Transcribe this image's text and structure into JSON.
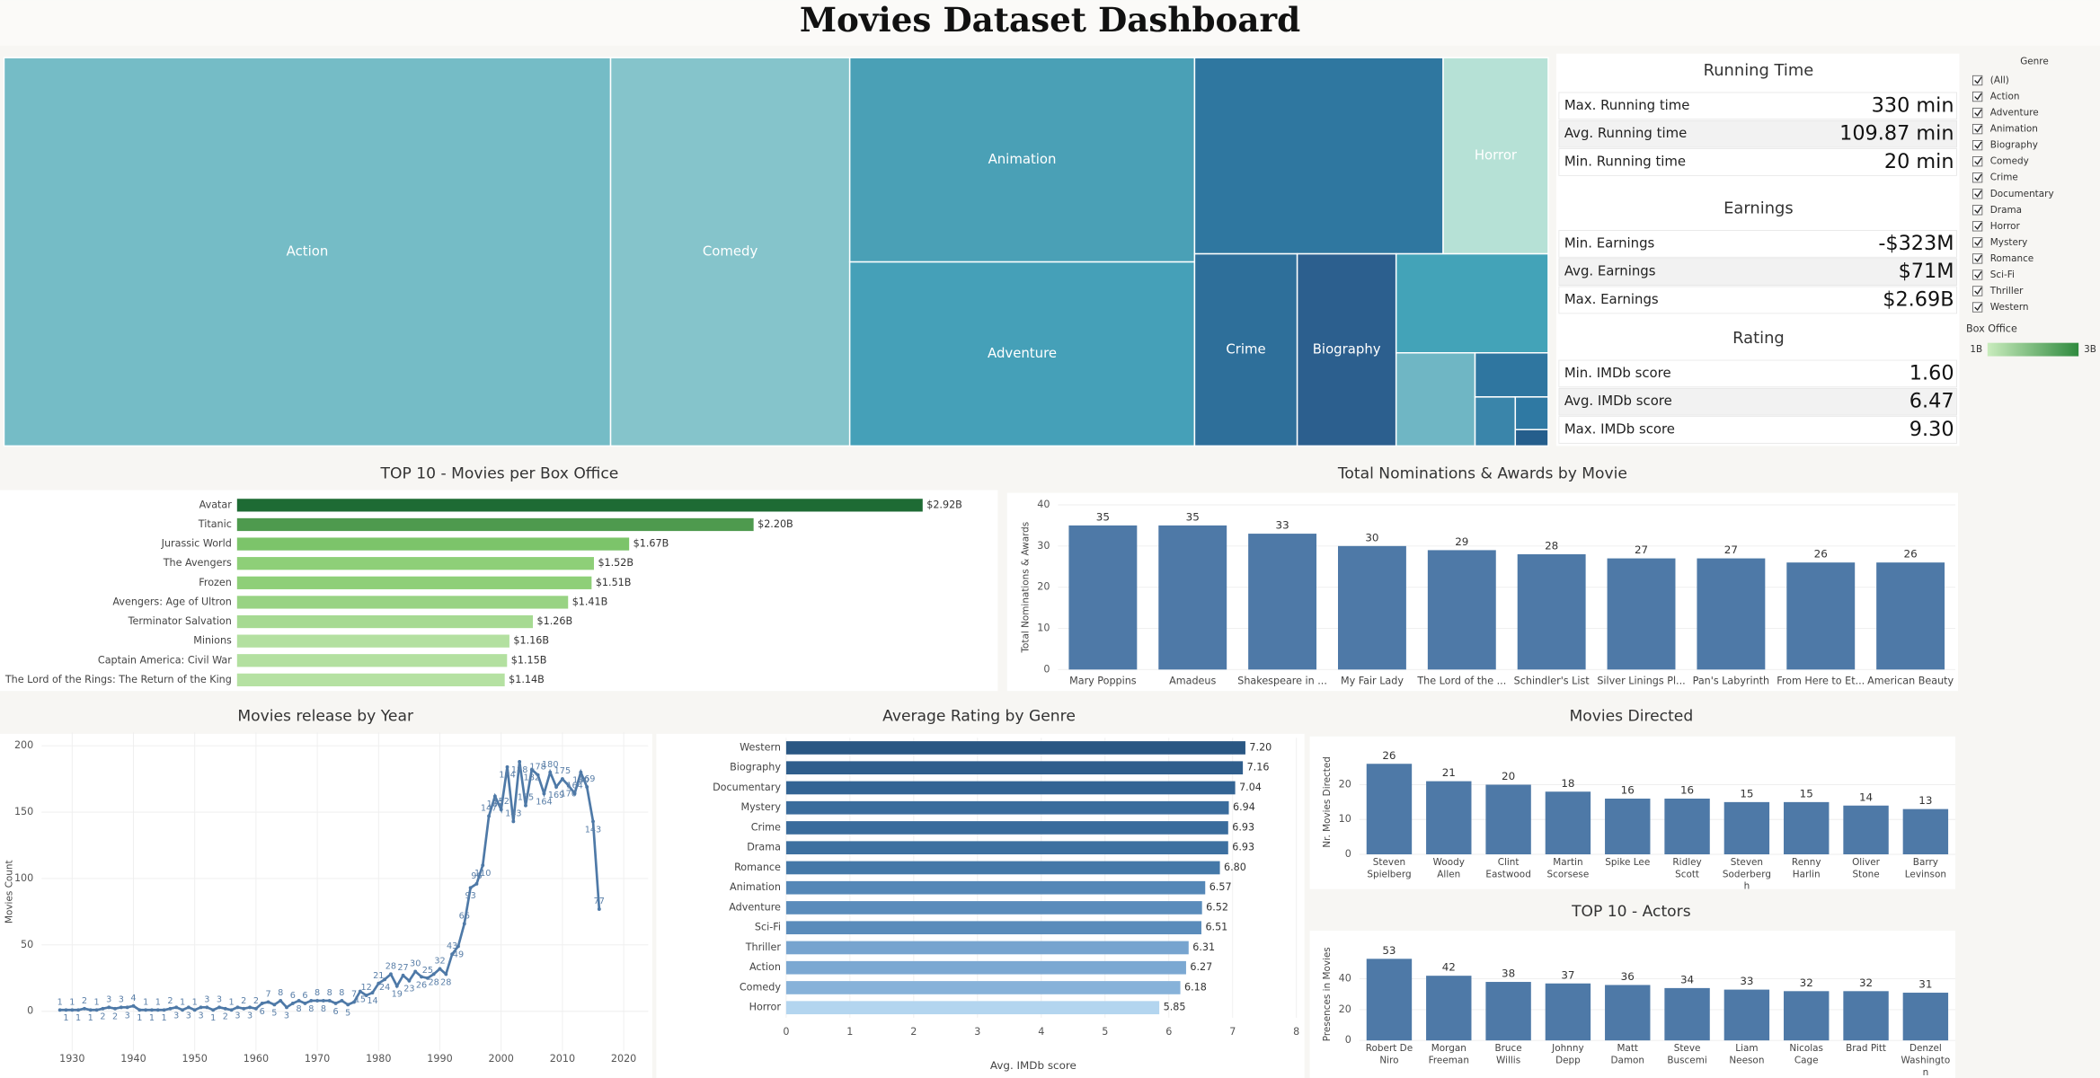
{
  "title": "Movies Dataset Dashboard",
  "chart_data": [
    {
      "type": "treemap",
      "categories": [
        "Action",
        "Comedy",
        "Animation",
        "Adventure",
        null,
        "Horror",
        "Crime",
        "Biography",
        null,
        null,
        null,
        null,
        null,
        null
      ],
      "values": [
        1314,
        518,
        393,
        354,
        272,
        115,
        110,
        106,
        84,
        41,
        18,
        11,
        6,
        3
      ],
      "colors": [
        "#75bcc6",
        "#85c4cb",
        "#4aa0b6",
        "#45a0b8",
        "#2f77a0",
        "#b6e1d6",
        "#2e6f9a",
        "#2c5f8e",
        "#43a3b8",
        "#6fb6c4",
        "#2f76a0",
        "#3a85aa",
        "#2f79a3",
        "#255e8c"
      ]
    },
    {
      "type": "bar",
      "orientation": "horizontal",
      "title": "TOP 10 - Movies per Box Office",
      "categories": [
        "Avatar",
        "Titanic",
        "Jurassic World",
        "The Avengers",
        "Frozen",
        "Avengers: Age of Ultron",
        "Terminator Salvation",
        "Minions",
        "Captain America: Civil War",
        "The Lord of the Rings: The Return of the King"
      ],
      "values": [
        2920000000,
        2200000000,
        1670000000,
        1520000000,
        1510000000,
        1410000000,
        1260000000,
        1160000000,
        1150000000,
        1140000000
      ],
      "value_labels": [
        "$2.92B",
        "$2.20B",
        "$1.67B",
        "$1.52B",
        "$1.51B",
        "$1.41B",
        "$1.26B",
        "$1.16B",
        "$1.15B",
        "$1.14B"
      ],
      "colors": [
        "#1e6b34",
        "#4e9a4e",
        "#7cc46a",
        "#8ecf78",
        "#8ecf78",
        "#98d383",
        "#a6da92",
        "#b3e0a0",
        "#b3e0a0",
        "#b5e1a2"
      ],
      "xlim": [
        0,
        3200000000
      ]
    },
    {
      "type": "bar",
      "title": "Total Nominations & Awards by Movie",
      "y_label": "Total Nominations & Awards",
      "categories": [
        "Mary Poppins",
        "Amadeus",
        "Shakespeare in ...",
        "My Fair Lady",
        "The Lord of the ...",
        "Schindler's List",
        "Silver Linings Pl...",
        "Pan's Labyrinth",
        "From Here to Et...",
        "American Beauty"
      ],
      "values": [
        35,
        35,
        33,
        30,
        29,
        28,
        27,
        27,
        26,
        26
      ],
      "color": "#4e79a7",
      "ylim": [
        0,
        40
      ],
      "yticks": [
        0,
        10,
        20,
        30,
        40
      ],
      "grid": true
    },
    {
      "type": "line",
      "title": "Movies release by Year",
      "y_label": "Movies Count",
      "color": "#4e79a7",
      "x": [
        1928,
        1929,
        1930,
        1931,
        1932,
        1933,
        1934,
        1935,
        1936,
        1937,
        1938,
        1939,
        1940,
        1941,
        1942,
        1943,
        1944,
        1945,
        1946,
        1947,
        1948,
        1949,
        1950,
        1951,
        1952,
        1953,
        1954,
        1955,
        1956,
        1957,
        1958,
        1959,
        1960,
        1961,
        1962,
        1963,
        1964,
        1965,
        1966,
        1967,
        1968,
        1969,
        1970,
        1971,
        1972,
        1973,
        1974,
        1975,
        1976,
        1977,
        1978,
        1979,
        1980,
        1981,
        1982,
        1983,
        1984,
        1985,
        1986,
        1987,
        1988,
        1989,
        1990,
        1991,
        1992,
        1993,
        1994,
        1995,
        1996,
        1997,
        1998,
        1999,
        2000,
        2001,
        2002,
        2003,
        2004,
        2005,
        2006,
        2007,
        2008,
        2009,
        2010,
        2011,
        2012,
        2013,
        2014,
        2015,
        2016
      ],
      "values": [
        1,
        1,
        1,
        1,
        2,
        1,
        1,
        2,
        3,
        2,
        3,
        3,
        4,
        1,
        1,
        1,
        1,
        1,
        2,
        3,
        1,
        3,
        1,
        3,
        3,
        1,
        3,
        2,
        1,
        3,
        2,
        3,
        2,
        6,
        7,
        5,
        8,
        3,
        6,
        8,
        6,
        8,
        8,
        8,
        8,
        6,
        8,
        5,
        7,
        15,
        12,
        14,
        21,
        24,
        28,
        19,
        27,
        23,
        30,
        26,
        25,
        28,
        32,
        28,
        43,
        49,
        66,
        93,
        96,
        110,
        147,
        162,
        152,
        184,
        143,
        188,
        155,
        182,
        178,
        164,
        180,
        169,
        175,
        170,
        164,
        180,
        169,
        143,
        77
      ],
      "xlim": [
        1925,
        2024
      ],
      "xticks": [
        1930,
        1940,
        1950,
        1960,
        1970,
        1980,
        1990,
        2000,
        2010,
        2020
      ],
      "ylim": [
        -30,
        210
      ],
      "yticks": [
        0,
        50,
        100,
        150,
        200
      ],
      "grid": true
    },
    {
      "type": "bar",
      "orientation": "horizontal",
      "title": "Average Rating by Genre",
      "x_label": "Avg. IMDb score",
      "categories": [
        "Western",
        "Biography",
        "Documentary",
        "Mystery",
        "Crime",
        "Drama",
        "Romance",
        "Animation",
        "Adventure",
        "Sci-Fi",
        "Thriller",
        "Action",
        "Comedy",
        "Horror"
      ],
      "values": [
        7.2,
        7.16,
        7.04,
        6.94,
        6.93,
        6.93,
        6.8,
        6.57,
        6.52,
        6.51,
        6.31,
        6.27,
        6.18,
        5.85
      ],
      "value_labels": [
        "7.20",
        "7.16",
        "7.04",
        "6.94",
        "6.93",
        "6.93",
        "6.80",
        "6.57",
        "6.52",
        "6.51",
        "6.31",
        "6.27",
        "6.18",
        "5.85"
      ],
      "colors": [
        "#2a5783",
        "#2f5e8c",
        "#336494",
        "#3a6c9c",
        "#3a6c9c",
        "#3d70a0",
        "#4478a8",
        "#5487b7",
        "#5a8cbb",
        "#5a8cbb",
        "#77a4cf",
        "#7ba8d2",
        "#87b2d9",
        "#b3d5ef"
      ],
      "xlim": [
        0,
        8
      ],
      "xticks": [
        0,
        1,
        2,
        3,
        4,
        5,
        6,
        7,
        8
      ],
      "grid": true
    },
    {
      "type": "bar",
      "title": "Movies Directed",
      "y_label": "Nr. Movies Directed",
      "categories": [
        "Steven Spielberg",
        "Woody Allen",
        "Clint Eastwood",
        "Martin Scorsese",
        "Spike Lee",
        "Ridley Scott",
        "Steven Soderbergh",
        "Renny Harlin",
        "Oliver Stone",
        "Barry Levinson"
      ],
      "values": [
        26,
        21,
        20,
        18,
        16,
        16,
        15,
        15,
        14,
        13
      ],
      "color": "#4e79a7",
      "ylim": [
        0,
        30
      ],
      "yticks": [
        0,
        10,
        20
      ],
      "grid": true
    },
    {
      "type": "bar",
      "title": "TOP 10 - Actors",
      "y_label": "Presences in Movies",
      "categories": [
        "Robert De Niro",
        "Morgan Freeman",
        "Bruce Willis",
        "Johnny Depp",
        "Matt Damon",
        "Steve Buscemi",
        "Liam Neeson",
        "Nicolas Cage",
        "Brad Pitt",
        "Denzel Washington"
      ],
      "values": [
        53,
        42,
        38,
        37,
        36,
        34,
        33,
        32,
        32,
        31
      ],
      "color": "#4e79a7",
      "ylim": [
        0,
        60
      ],
      "yticks": [
        0,
        20,
        40
      ],
      "grid": true
    }
  ],
  "kpis": [
    {
      "title": "Running Time",
      "rows": [
        {
          "label": "Max. Running time",
          "value": "330 min"
        },
        {
          "label": "Avg. Running time",
          "value": "109.87 min"
        },
        {
          "label": "Min. Running time",
          "value": "20 min"
        }
      ]
    },
    {
      "title": "Earnings",
      "rows": [
        {
          "label": "Min. Earnings",
          "value": "-$323M"
        },
        {
          "label": "Avg. Earnings",
          "value": "$71M"
        },
        {
          "label": "Max. Earnings",
          "value": "$2.69B"
        }
      ]
    },
    {
      "title": "Rating",
      "rows": [
        {
          "label": "Min. IMDb score",
          "value": "1.60"
        },
        {
          "label": "Avg. IMDb score",
          "value": "6.47"
        },
        {
          "label": "Max. IMDb score",
          "value": "9.30"
        }
      ]
    }
  ],
  "filter": {
    "title": "Genre",
    "options": [
      "(All)",
      "Action",
      "Adventure",
      "Animation",
      "Biography",
      "Comedy",
      "Crime",
      "Documentary",
      "Drama",
      "Horror",
      "Mystery",
      "Romance",
      "Sci-Fi",
      "Thriller",
      "Western"
    ],
    "legend_title": "Box Office",
    "legend_min": "1B",
    "legend_max": "3B"
  }
}
